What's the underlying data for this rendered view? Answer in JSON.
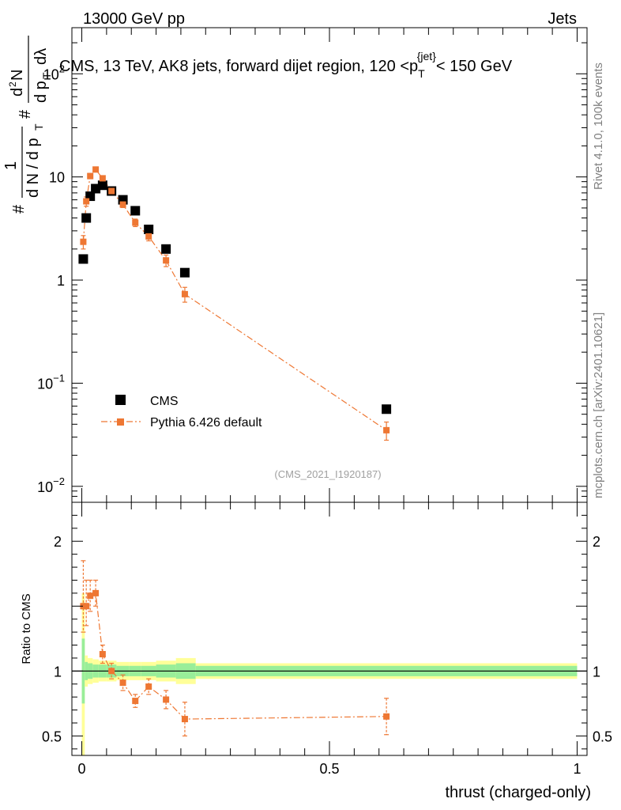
{
  "header": {
    "left": "13000 GeV pp",
    "right": "Jets"
  },
  "side_labels": {
    "rivet": "Rivet 4.1.0,  100k events",
    "mcplots": "mcplots.cern.ch [arXiv:2401.10621]"
  },
  "colors": {
    "cms": "#000000",
    "pythia": "#ee7733",
    "band_outer": "#ffff99",
    "band_inner": "#99ee99"
  },
  "chart_data": [
    {
      "type": "scatter",
      "panel": "main",
      "title": "CMS, 13 TeV, AK8 jets, forward dijet region, 120 <p_T^{jet}< 150 GeV",
      "title_parts": {
        "prefix": "CMS, 13 TeV, AK8 jets, forward dijet region, 120 <p",
        "sub": "T",
        "sup": "{jet}",
        "suffix": "< 150 GeV"
      },
      "analysis_id": "(CMS_2021_I1920187)",
      "xlabel": "thrust (charged-only)",
      "ylabel": "1/dN/dp_T d²N/dp_T dλ",
      "ylabel_parts": {
        "hash1": "#",
        "one": "1",
        "dN": "d N / d p",
        "T": "T",
        "hash2": "#",
        "num": "d",
        "two": "2",
        "numN": "N",
        "den": "d p",
        "den_l": "dλ"
      },
      "xlim": [
        -0.02,
        1.02
      ],
      "ylim": [
        0.007,
        280
      ],
      "yscale": "log",
      "y_ticks": [
        {
          "value": 0.01,
          "base": "10",
          "exp": "−2"
        },
        {
          "value": 0.1,
          "base": "10",
          "exp": "−1"
        },
        {
          "value": 1,
          "base": "1",
          "exp": ""
        },
        {
          "value": 10,
          "base": "10",
          "exp": ""
        },
        {
          "value": 100,
          "base": "10",
          "exp": "2"
        }
      ],
      "legend": {
        "position": "center-left",
        "entries": [
          "CMS",
          "Pythia 6.426 default"
        ]
      },
      "series": [
        {
          "name": "CMS",
          "marker": "square",
          "x": [
            0.003,
            0.009,
            0.017,
            0.028,
            0.042,
            0.06,
            0.083,
            0.108,
            0.135,
            0.17,
            0.208,
            0.615
          ],
          "y": [
            1.6,
            4.0,
            6.5,
            7.7,
            8.3,
            7.3,
            6.0,
            4.7,
            3.1,
            2.0,
            1.18,
            0.056
          ]
        },
        {
          "name": "Pythia 6.426 default",
          "marker": "square",
          "linestyle": "dash-dot",
          "x": [
            0.003,
            0.009,
            0.017,
            0.028,
            0.042,
            0.06,
            0.083,
            0.108,
            0.135,
            0.17,
            0.208,
            0.615
          ],
          "y": [
            2.35,
            5.8,
            10.2,
            11.8,
            9.7,
            7.3,
            5.4,
            3.6,
            2.65,
            1.55,
            0.73,
            0.035
          ],
          "yerr_lo": [
            0.35,
            0.6,
            0.6,
            0.5,
            0.5,
            0.4,
            0.35,
            0.3,
            0.25,
            0.2,
            0.12,
            0.007
          ],
          "yerr_hi": [
            0.35,
            0.6,
            0.6,
            0.5,
            0.5,
            0.4,
            0.35,
            0.3,
            0.25,
            0.2,
            0.12,
            0.007
          ]
        }
      ]
    },
    {
      "type": "scatter",
      "panel": "ratio",
      "xlabel": "thrust (charged-only)",
      "ylabel": "Ratio to CMS",
      "xlim": [
        -0.02,
        1.02
      ],
      "ylim": [
        0.35,
        2.3
      ],
      "yscale": "linear",
      "x_ticks": [
        {
          "value": 0,
          "label": "0"
        },
        {
          "value": 0.5,
          "label": "0.5"
        },
        {
          "value": 1,
          "label": "1"
        }
      ],
      "y_ticks": [
        {
          "value": 0.5,
          "label": "0.5"
        },
        {
          "value": 1,
          "label": "1"
        },
        {
          "value": 2,
          "label": "2"
        }
      ],
      "reference_line": 1,
      "bands": {
        "edges": [
          0,
          0.006,
          0.012,
          0.022,
          0.034,
          0.05,
          0.07,
          0.096,
          0.12,
          0.15,
          0.19,
          0.23,
          1.0
        ],
        "outer_lo": [
          0.3,
          0.88,
          0.9,
          0.91,
          0.92,
          0.92,
          0.93,
          0.93,
          0.93,
          0.92,
          0.9,
          0.94
        ],
        "outer_hi": [
          1.6,
          1.12,
          1.1,
          1.09,
          1.08,
          1.08,
          1.07,
          1.07,
          1.07,
          1.08,
          1.1,
          1.06
        ],
        "inner_lo": [
          0.75,
          0.93,
          0.94,
          0.95,
          0.95,
          0.95,
          0.96,
          0.96,
          0.96,
          0.95,
          0.94,
          0.96
        ],
        "inner_hi": [
          1.25,
          1.07,
          1.06,
          1.05,
          1.05,
          1.05,
          1.04,
          1.04,
          1.04,
          1.05,
          1.06,
          1.04
        ]
      },
      "series": [
        {
          "name": "Pythia 6.426 default",
          "marker": "square",
          "linestyle": "dash-dot",
          "x": [
            0.003,
            0.009,
            0.017,
            0.028,
            0.042,
            0.06,
            0.083,
            0.108,
            0.135,
            0.17,
            0.208,
            0.615
          ],
          "y": [
            1.5,
            1.5,
            1.58,
            1.6,
            1.13,
            1.0,
            0.91,
            0.77,
            0.88,
            0.78,
            0.63,
            0.65
          ],
          "yerr_lo": [
            0.2,
            0.15,
            0.12,
            0.1,
            0.07,
            0.06,
            0.06,
            0.05,
            0.06,
            0.07,
            0.13,
            0.14
          ],
          "yerr_hi": [
            0.35,
            0.2,
            0.12,
            0.1,
            0.07,
            0.06,
            0.06,
            0.05,
            0.06,
            0.07,
            0.13,
            0.14
          ]
        }
      ]
    }
  ]
}
